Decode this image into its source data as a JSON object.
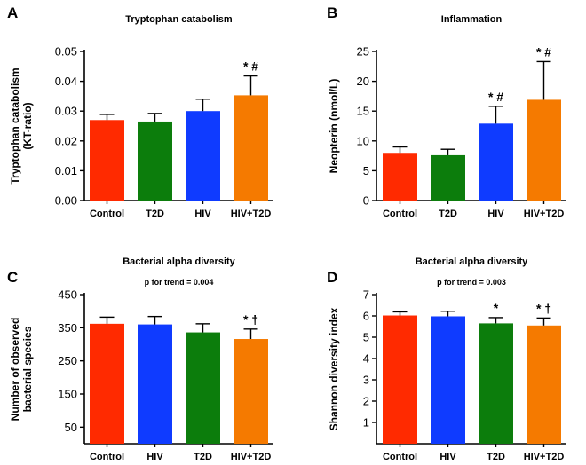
{
  "colors": {
    "red": "#ff2a00",
    "green": "#0c7d0c",
    "blue": "#0f3bff",
    "orange": "#f57a00",
    "axis": "#000000"
  },
  "chart_data": [
    {
      "panel_letter": "A",
      "type": "bar",
      "title": "Tryptophan catabolism",
      "subtitle": "",
      "ylabel_lines": [
        "Tryptophan catabolism",
        "(KT-ratio)"
      ],
      "xlabel": "",
      "categories": [
        "Control",
        "T2D",
        "HIV",
        "HIV+T2D"
      ],
      "values": [
        0.027,
        0.0265,
        0.03,
        0.0353
      ],
      "errors": [
        0.0019,
        0.0027,
        0.004,
        0.0065
      ],
      "bar_colors": [
        "#ff2a00",
        "#0c7d0c",
        "#0f3bff",
        "#f57a00"
      ],
      "ylim": [
        0,
        0.05
      ],
      "yticks": [
        0,
        0.01,
        0.02,
        0.03,
        0.04,
        0.05
      ],
      "ytick_labels": [
        "0.00",
        "0.01",
        "0.02",
        "0.03",
        "0.04",
        "0.05"
      ],
      "annotations": [
        "",
        "",
        "",
        "* #"
      ]
    },
    {
      "panel_letter": "B",
      "type": "bar",
      "title": "Inflammation",
      "subtitle": "",
      "ylabel_lines": [
        "Neopterin (nmol/L)"
      ],
      "xlabel": "",
      "categories": [
        "Control",
        "T2D",
        "HIV",
        "HIV+T2D"
      ],
      "values": [
        8.0,
        7.6,
        12.9,
        16.9
      ],
      "errors": [
        1.0,
        1.0,
        2.9,
        6.4
      ],
      "bar_colors": [
        "#ff2a00",
        "#0c7d0c",
        "#0f3bff",
        "#f57a00"
      ],
      "ylim": [
        0,
        25
      ],
      "yticks": [
        0,
        5,
        10,
        15,
        20,
        25
      ],
      "ytick_labels": [
        "0",
        "5",
        "10",
        "15",
        "20",
        "25"
      ],
      "annotations": [
        "",
        "",
        "* #",
        "* #"
      ]
    },
    {
      "panel_letter": "C",
      "type": "bar",
      "title": "Bacterial alpha diversity",
      "subtitle": "p for trend = 0.004",
      "ylabel_lines": [
        "Number of observed",
        "bacterial species"
      ],
      "xlabel": "",
      "categories": [
        "Control",
        "HIV",
        "T2D",
        "HIV+T2D"
      ],
      "values": [
        362,
        360,
        336,
        316
      ],
      "errors": [
        20,
        24,
        26,
        30
      ],
      "bar_colors": [
        "#ff2a00",
        "#0f3bff",
        "#0c7d0c",
        "#f57a00"
      ],
      "ylim": [
        0,
        450
      ],
      "yticks": [
        50,
        150,
        250,
        350,
        450
      ],
      "ytick_labels": [
        "50",
        "150",
        "250",
        "350",
        "450"
      ],
      "annotations": [
        "",
        "",
        "",
        "* †"
      ]
    },
    {
      "panel_letter": "D",
      "type": "bar",
      "title": "Bacterial alpha diversity",
      "subtitle": "p for trend = 0.003",
      "ylabel_lines": [
        "Shannon diversity index"
      ],
      "xlabel": "",
      "categories": [
        "Control",
        "HIV",
        "T2D",
        "HIV+T2D"
      ],
      "values": [
        6.02,
        5.98,
        5.65,
        5.55
      ],
      "errors": [
        0.17,
        0.24,
        0.27,
        0.35
      ],
      "bar_colors": [
        "#ff2a00",
        "#0f3bff",
        "#0c7d0c",
        "#f57a00"
      ],
      "ylim": [
        0,
        7
      ],
      "yticks": [
        1,
        2,
        3,
        4,
        5,
        6,
        7
      ],
      "ytick_labels": [
        "1",
        "2",
        "3",
        "4",
        "5",
        "6",
        "7"
      ],
      "annotations": [
        "",
        "",
        "*",
        "* †"
      ]
    }
  ]
}
